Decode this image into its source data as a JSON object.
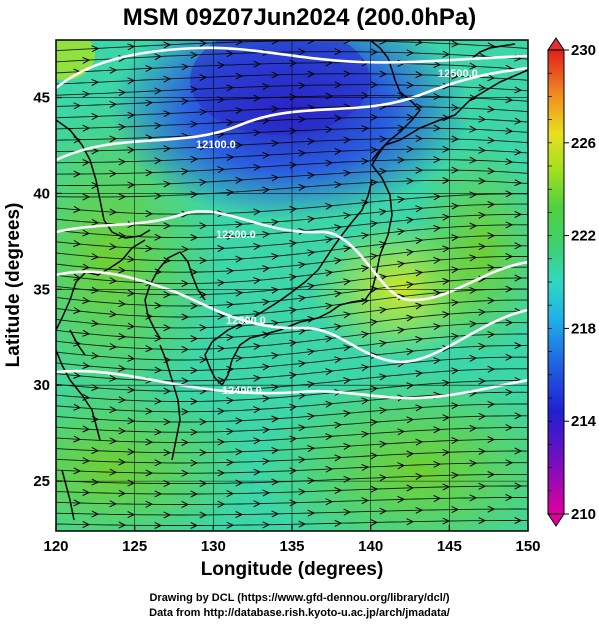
{
  "title": "MSM 09Z07Jun2024 (200.0hPa)",
  "chart_data": {
    "type": "map",
    "xlabel": "Longitude (degrees)",
    "ylabel": "Latitude  (degrees)",
    "xlim": [
      120,
      150
    ],
    "ylim": [
      22.4,
      48.0
    ],
    "x_ticks": [
      "120",
      "125",
      "130",
      "135",
      "140",
      "145",
      "150"
    ],
    "y_ticks": [
      "25",
      "30",
      "35",
      "40",
      "45"
    ],
    "colorbar": {
      "min": 210,
      "max": 230,
      "labels": [
        "230",
        "226",
        "222",
        "218",
        "214",
        "210"
      ],
      "colors": [
        "#e00090",
        "#3020d0",
        "#2060e0",
        "#20b8e8",
        "#30d0b0",
        "#40d060",
        "#60d040",
        "#c0e020",
        "#f0d020",
        "#f08020",
        "#e02020"
      ]
    },
    "contours": [
      {
        "label": "12100.0"
      },
      {
        "label": "12200.0"
      },
      {
        "label": "12300.0"
      },
      {
        "label": "12400.0"
      },
      {
        "label": "12500.0"
      }
    ]
  },
  "credits": {
    "line1": "Drawing by DCL (https://www.gfd‐dennou.org/library/dcl/)",
    "line2": "Data from http://database.rish.kyoto‐u.ac.jp/arch/jmadata/"
  }
}
